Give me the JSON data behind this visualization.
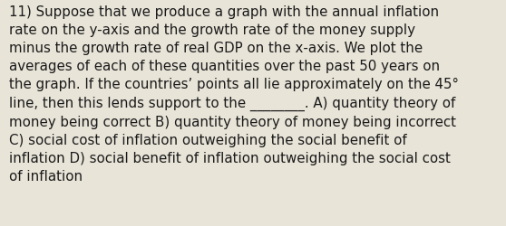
{
  "lines": [
    "11) Suppose that we produce a graph with the annual inflation",
    "rate on the y-axis and the growth rate of the money supply",
    "minus the growth rate of real GDP on the x-axis. We plot the",
    "averages of each of these quantities over the past 50 years on",
    "the graph. If the countries’ points all lie approximately on the 45°",
    "line, then this lends support to the ________. A) quantity theory of",
    "money being correct B) quantity theory of money being incorrect",
    "C) social cost of inflation outweighing the social benefit of",
    "inflation D) social benefit of inflation outweighing the social cost",
    "of inflation"
  ],
  "background_color": "#e8e4d8",
  "text_color": "#1a1a1a",
  "font_size": 10.8,
  "fig_width": 5.58,
  "fig_height": 2.51,
  "dpi": 100
}
